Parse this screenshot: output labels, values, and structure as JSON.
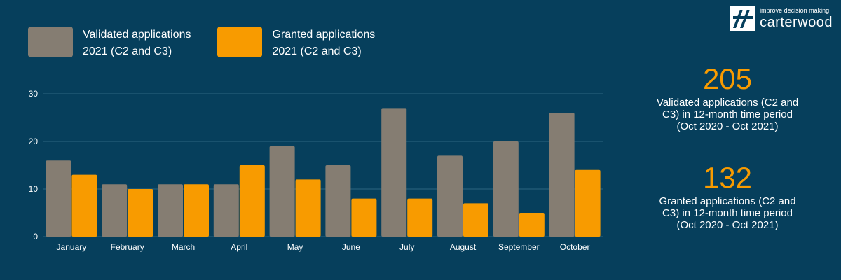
{
  "colors": {
    "background": "#063f5c",
    "validated": "#857d72",
    "granted": "#f89b00",
    "grid": "#2c6480",
    "text": "#ffffff"
  },
  "legend": [
    {
      "label": "Validated applications\n2021 (C2 and C3)",
      "color": "#857d72"
    },
    {
      "label": "Granted applications\n2021 (C2 and C3)",
      "color": "#f89b00"
    }
  ],
  "logo": {
    "tagline": "improve decision making",
    "name": "carterwood"
  },
  "stats": [
    {
      "value": "205",
      "caption": "Validated applications (C2 and\nC3) in 12-month time period\n(Oct 2020 - Oct 2021)"
    },
    {
      "value": "132",
      "caption": "Granted applications (C2 and\nC3) in 12-month time period\n(Oct 2020 - Oct 2021)"
    }
  ],
  "chart_data": {
    "type": "bar",
    "categories": [
      "January",
      "February",
      "March",
      "April",
      "May",
      "June",
      "July",
      "August",
      "September",
      "October"
    ],
    "series": [
      {
        "name": "Validated applications 2021 (C2 and C3)",
        "values": [
          16,
          11,
          11,
          11,
          19,
          15,
          27,
          17,
          20,
          26
        ]
      },
      {
        "name": "Granted applications 2021 (C2 and C3)",
        "values": [
          13,
          10,
          11,
          15,
          12,
          8,
          8,
          7,
          5,
          14
        ]
      }
    ],
    "yticks": [
      0,
      10,
      20,
      30
    ],
    "ylim": [
      0,
      30
    ],
    "grid": true,
    "legend_position": "top-left",
    "title": "",
    "xlabel": "",
    "ylabel": ""
  }
}
